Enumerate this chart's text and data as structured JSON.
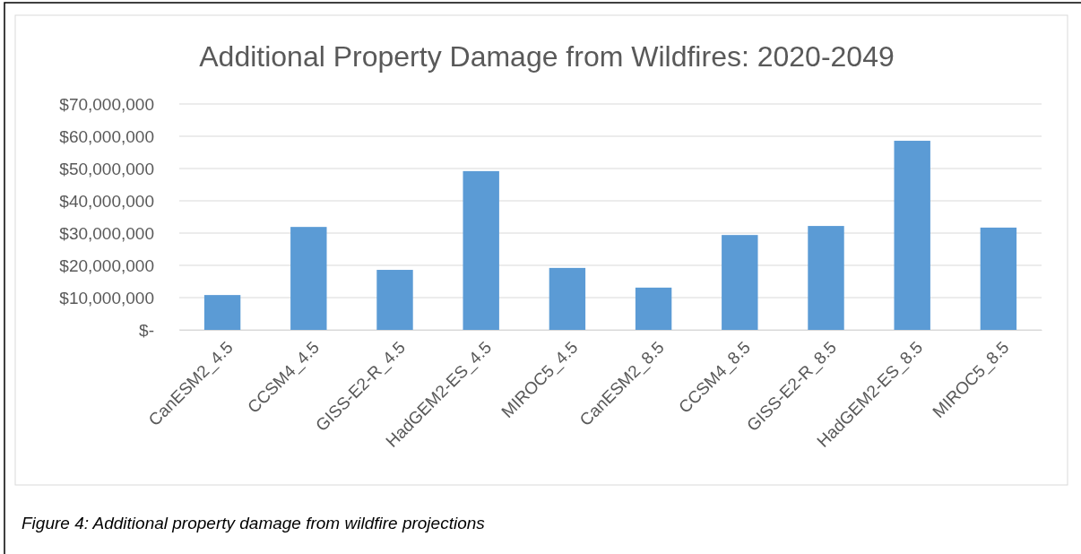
{
  "chart_data": {
    "type": "bar",
    "title": "Additional Property Damage from Wildfires: 2020-2049",
    "categories": [
      "CanESM2_4.5",
      "CCSM4_4.5",
      "GISS-E2-R_4.5",
      "HadGEM2-ES_4.5",
      "MIROC5_4.5",
      "CanESM2_8.5",
      "CCSM4_8.5",
      "GISS-E2-R_8.5",
      "HadGEM2-ES_8.5",
      "MIROC5_8.5"
    ],
    "values": [
      10800000,
      31900000,
      18600000,
      49200000,
      19200000,
      13100000,
      29400000,
      32200000,
      58600000,
      31700000
    ],
    "color": "#5b9bd5",
    "ylim": [
      0,
      70000000
    ],
    "yticks": [
      {
        "value": 0,
        "label": "$-"
      },
      {
        "value": 10000000,
        "label": "$10,000,000"
      },
      {
        "value": 20000000,
        "label": "$20,000,000"
      },
      {
        "value": 30000000,
        "label": "$30,000,000"
      },
      {
        "value": 40000000,
        "label": "$40,000,000"
      },
      {
        "value": 50000000,
        "label": "$50,000,000"
      },
      {
        "value": 60000000,
        "label": "$60,000,000"
      },
      {
        "value": 70000000,
        "label": "$70,000,000"
      }
    ],
    "grid": "y",
    "annotations": [
      "Figure 4: Additional property damage from wildfire projections"
    ]
  }
}
